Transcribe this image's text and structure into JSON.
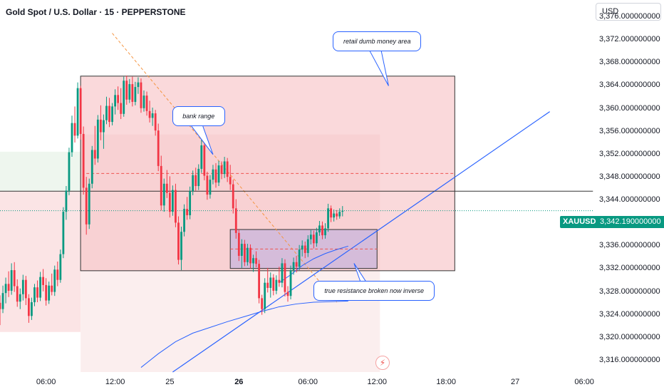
{
  "header": {
    "title": "Gold Spot / U.S. Dollar · 15 · PEPPERSTONE",
    "currency": "USD"
  },
  "chart_data": {
    "type": "candlestick",
    "symbol": "XAUUSD",
    "current_price": "3,342.190000000",
    "last_price_value": 3342.19,
    "ylim": [
      3314,
      3379
    ],
    "y_ticks": [
      {
        "value": 3376,
        "label": "3,376.000000000"
      },
      {
        "value": 3372,
        "label": "3,372.000000000"
      },
      {
        "value": 3368,
        "label": "3,368.000000000"
      },
      {
        "value": 3364,
        "label": "3,364.000000000"
      },
      {
        "value": 3360,
        "label": "3,360.000000000"
      },
      {
        "value": 3356,
        "label": "3,356.000000000"
      },
      {
        "value": 3352,
        "label": "3,352.000000000"
      },
      {
        "value": 3348,
        "label": "3,348.000000000"
      },
      {
        "value": 3344,
        "label": "3,344.000000000"
      },
      {
        "value": 3340,
        "label": "3,340.000000000"
      },
      {
        "value": 3336,
        "label": "3,336.000000000"
      },
      {
        "value": 3332,
        "label": "3,332.000000000"
      },
      {
        "value": 3328,
        "label": "3,328.000000000"
      },
      {
        "value": 3324,
        "label": "3,324.000000000"
      },
      {
        "value": 3320,
        "label": "3,320.000000000"
      },
      {
        "value": 3316,
        "label": "3,316.000000000"
      }
    ],
    "x_axis": {
      "range": [
        0,
        206
      ],
      "unit": "15-minute bars"
    },
    "x_ticks": [
      {
        "pos": 16,
        "label": "06:00",
        "bold": false
      },
      {
        "pos": 40,
        "label": "12:00",
        "bold": false
      },
      {
        "pos": 59,
        "label": "25",
        "bold": false
      },
      {
        "pos": 83,
        "label": "26",
        "bold": true
      },
      {
        "pos": 107,
        "label": "06:00",
        "bold": false
      },
      {
        "pos": 131,
        "label": "12:00",
        "bold": false
      },
      {
        "pos": 155,
        "label": "18:00",
        "bold": false
      },
      {
        "pos": 179,
        "label": "27",
        "bold": false
      },
      {
        "pos": 203,
        "label": "06:00",
        "bold": false
      }
    ],
    "candles": [
      {
        "i": 0,
        "o": 3326.1,
        "h": 3327.4,
        "l": 3322.2,
        "c": 3325.0
      },
      {
        "i": 1,
        "o": 3325.0,
        "h": 3329.1,
        "l": 3324.3,
        "c": 3327.8
      },
      {
        "i": 2,
        "o": 3327.8,
        "h": 3330.5,
        "l": 3326.0,
        "c": 3329.4
      },
      {
        "i": 3,
        "o": 3329.4,
        "h": 3331.6,
        "l": 3327.1,
        "c": 3328.2
      },
      {
        "i": 4,
        "o": 3328.2,
        "h": 3333.0,
        "l": 3327.5,
        "c": 3331.8
      },
      {
        "i": 5,
        "o": 3331.8,
        "h": 3333.2,
        "l": 3328.0,
        "c": 3329.0
      },
      {
        "i": 6,
        "o": 3329.0,
        "h": 3330.2,
        "l": 3325.4,
        "c": 3326.3
      },
      {
        "i": 7,
        "o": 3326.3,
        "h": 3328.6,
        "l": 3325.0,
        "c": 3327.6
      },
      {
        "i": 8,
        "o": 3327.6,
        "h": 3331.0,
        "l": 3326.5,
        "c": 3330.1
      },
      {
        "i": 9,
        "o": 3330.1,
        "h": 3330.8,
        "l": 3325.7,
        "c": 3326.9
      },
      {
        "i": 10,
        "o": 3326.9,
        "h": 3327.6,
        "l": 3322.6,
        "c": 3323.8
      },
      {
        "i": 11,
        "o": 3323.8,
        "h": 3327.0,
        "l": 3323.1,
        "c": 3326.2
      },
      {
        "i": 12,
        "o": 3326.2,
        "h": 3329.4,
        "l": 3325.5,
        "c": 3328.8
      },
      {
        "i": 13,
        "o": 3328.8,
        "h": 3330.0,
        "l": 3326.2,
        "c": 3327.0
      },
      {
        "i": 14,
        "o": 3327.0,
        "h": 3331.5,
        "l": 3326.4,
        "c": 3330.6
      },
      {
        "i": 15,
        "o": 3330.6,
        "h": 3332.0,
        "l": 3328.1,
        "c": 3329.2
      },
      {
        "i": 16,
        "o": 3329.2,
        "h": 3330.4,
        "l": 3325.6,
        "c": 3326.5
      },
      {
        "i": 17,
        "o": 3326.5,
        "h": 3329.8,
        "l": 3325.9,
        "c": 3329.1
      },
      {
        "i": 18,
        "o": 3329.1,
        "h": 3331.2,
        "l": 3327.4,
        "c": 3328.0
      },
      {
        "i": 19,
        "o": 3328.0,
        "h": 3332.6,
        "l": 3327.3,
        "c": 3331.9
      },
      {
        "i": 20,
        "o": 3331.9,
        "h": 3333.3,
        "l": 3329.0,
        "c": 3330.1
      },
      {
        "i": 21,
        "o": 3330.1,
        "h": 3335.4,
        "l": 3329.6,
        "c": 3334.6
      },
      {
        "i": 22,
        "o": 3334.6,
        "h": 3342.8,
        "l": 3333.9,
        "c": 3342.0
      },
      {
        "i": 23,
        "o": 3342.0,
        "h": 3346.5,
        "l": 3340.6,
        "c": 3345.7
      },
      {
        "i": 24,
        "o": 3345.7,
        "h": 3353.2,
        "l": 3344.9,
        "c": 3352.4
      },
      {
        "i": 25,
        "o": 3352.4,
        "h": 3358.8,
        "l": 3351.6,
        "c": 3357.5
      },
      {
        "i": 26,
        "o": 3357.5,
        "h": 3360.4,
        "l": 3354.1,
        "c": 3355.3
      },
      {
        "i": 27,
        "o": 3355.3,
        "h": 3364.6,
        "l": 3354.8,
        "c": 3363.6
      },
      {
        "i": 28,
        "o": 3363.6,
        "h": 3364.0,
        "l": 3354.6,
        "c": 3355.6
      },
      {
        "i": 29,
        "o": 3355.6,
        "h": 3356.9,
        "l": 3345.0,
        "c": 3346.2
      },
      {
        "i": 30,
        "o": 3346.2,
        "h": 3348.1,
        "l": 3338.0,
        "c": 3339.8
      },
      {
        "i": 31,
        "o": 3339.8,
        "h": 3347.8,
        "l": 3339.0,
        "c": 3346.9
      },
      {
        "i": 32,
        "o": 3346.9,
        "h": 3353.5,
        "l": 3346.1,
        "c": 3352.8
      },
      {
        "i": 33,
        "o": 3352.8,
        "h": 3357.0,
        "l": 3350.2,
        "c": 3351.3
      },
      {
        "i": 34,
        "o": 3351.3,
        "h": 3358.9,
        "l": 3350.6,
        "c": 3358.1
      },
      {
        "i": 35,
        "o": 3358.1,
        "h": 3360.6,
        "l": 3354.5,
        "c": 3355.9
      },
      {
        "i": 36,
        "o": 3355.9,
        "h": 3359.0,
        "l": 3353.0,
        "c": 3358.0
      },
      {
        "i": 37,
        "o": 3358.0,
        "h": 3362.1,
        "l": 3357.3,
        "c": 3360.5
      },
      {
        "i": 38,
        "o": 3360.5,
        "h": 3361.9,
        "l": 3356.8,
        "c": 3357.7
      },
      {
        "i": 39,
        "o": 3357.7,
        "h": 3361.0,
        "l": 3357.1,
        "c": 3360.4
      },
      {
        "i": 40,
        "o": 3360.4,
        "h": 3363.4,
        "l": 3359.0,
        "c": 3362.4
      },
      {
        "i": 41,
        "o": 3362.4,
        "h": 3363.9,
        "l": 3359.8,
        "c": 3361.0
      },
      {
        "i": 42,
        "o": 3361.0,
        "h": 3363.6,
        "l": 3358.2,
        "c": 3359.1
      },
      {
        "i": 43,
        "o": 3359.1,
        "h": 3365.6,
        "l": 3358.6,
        "c": 3364.9
      },
      {
        "i": 44,
        "o": 3364.9,
        "h": 3365.8,
        "l": 3360.7,
        "c": 3361.6
      },
      {
        "i": 45,
        "o": 3361.6,
        "h": 3365.2,
        "l": 3361.0,
        "c": 3364.3
      },
      {
        "i": 46,
        "o": 3364.3,
        "h": 3365.6,
        "l": 3360.4,
        "c": 3361.2
      },
      {
        "i": 47,
        "o": 3361.2,
        "h": 3364.7,
        "l": 3360.6,
        "c": 3363.8
      },
      {
        "i": 48,
        "o": 3363.8,
        "h": 3365.5,
        "l": 3362.6,
        "c": 3364.6
      },
      {
        "i": 49,
        "o": 3364.6,
        "h": 3365.3,
        "l": 3359.3,
        "c": 3360.1
      },
      {
        "i": 50,
        "o": 3360.1,
        "h": 3363.2,
        "l": 3359.5,
        "c": 3362.3
      },
      {
        "i": 51,
        "o": 3362.3,
        "h": 3363.0,
        "l": 3358.8,
        "c": 3359.6
      },
      {
        "i": 52,
        "o": 3359.6,
        "h": 3361.4,
        "l": 3357.6,
        "c": 3358.4
      },
      {
        "i": 53,
        "o": 3358.4,
        "h": 3360.2,
        "l": 3357.0,
        "c": 3359.2
      },
      {
        "i": 54,
        "o": 3359.2,
        "h": 3359.8,
        "l": 3355.3,
        "c": 3356.2
      },
      {
        "i": 55,
        "o": 3356.2,
        "h": 3357.4,
        "l": 3349.1,
        "c": 3350.0
      },
      {
        "i": 56,
        "o": 3350.0,
        "h": 3351.8,
        "l": 3342.2,
        "c": 3343.1
      },
      {
        "i": 57,
        "o": 3343.1,
        "h": 3347.8,
        "l": 3342.0,
        "c": 3346.9
      },
      {
        "i": 58,
        "o": 3346.9,
        "h": 3349.3,
        "l": 3344.4,
        "c": 3345.3
      },
      {
        "i": 59,
        "o": 3345.3,
        "h": 3348.2,
        "l": 3341.0,
        "c": 3342.0
      },
      {
        "i": 60,
        "o": 3342.0,
        "h": 3346.6,
        "l": 3341.3,
        "c": 3345.8
      },
      {
        "i": 61,
        "o": 3345.8,
        "h": 3346.9,
        "l": 3339.3,
        "c": 3340.1
      },
      {
        "i": 62,
        "o": 3340.1,
        "h": 3341.2,
        "l": 3332.8,
        "c": 3333.6
      },
      {
        "i": 63,
        "o": 3333.6,
        "h": 3339.4,
        "l": 3331.8,
        "c": 3338.5
      },
      {
        "i": 64,
        "o": 3338.5,
        "h": 3343.3,
        "l": 3337.7,
        "c": 3342.5
      },
      {
        "i": 65,
        "o": 3342.5,
        "h": 3344.6,
        "l": 3340.6,
        "c": 3341.4
      },
      {
        "i": 66,
        "o": 3341.4,
        "h": 3346.4,
        "l": 3340.7,
        "c": 3345.6
      },
      {
        "i": 67,
        "o": 3345.6,
        "h": 3349.2,
        "l": 3344.9,
        "c": 3348.4
      },
      {
        "i": 68,
        "o": 3348.4,
        "h": 3349.7,
        "l": 3345.7,
        "c": 3346.5
      },
      {
        "i": 69,
        "o": 3346.5,
        "h": 3350.3,
        "l": 3345.8,
        "c": 3349.5
      },
      {
        "i": 70,
        "o": 3349.5,
        "h": 3355.0,
        "l": 3348.8,
        "c": 3353.6
      },
      {
        "i": 71,
        "o": 3353.6,
        "h": 3354.2,
        "l": 3347.5,
        "c": 3348.3
      },
      {
        "i": 72,
        "o": 3348.3,
        "h": 3349.0,
        "l": 3344.1,
        "c": 3345.0
      },
      {
        "i": 73,
        "o": 3345.0,
        "h": 3348.4,
        "l": 3344.3,
        "c": 3347.6
      },
      {
        "i": 74,
        "o": 3347.6,
        "h": 3350.2,
        "l": 3346.8,
        "c": 3349.4
      },
      {
        "i": 75,
        "o": 3349.4,
        "h": 3350.5,
        "l": 3346.2,
        "c": 3347.1
      },
      {
        "i": 76,
        "o": 3347.1,
        "h": 3350.9,
        "l": 3346.5,
        "c": 3350.1
      },
      {
        "i": 77,
        "o": 3350.1,
        "h": 3350.8,
        "l": 3347.7,
        "c": 3348.6
      },
      {
        "i": 78,
        "o": 3348.6,
        "h": 3351.6,
        "l": 3347.9,
        "c": 3350.8
      },
      {
        "i": 79,
        "o": 3350.8,
        "h": 3351.4,
        "l": 3347.2,
        "c": 3348.1
      },
      {
        "i": 80,
        "o": 3348.1,
        "h": 3350.2,
        "l": 3345.8,
        "c": 3346.8
      },
      {
        "i": 81,
        "o": 3346.8,
        "h": 3347.6,
        "l": 3341.7,
        "c": 3342.6
      },
      {
        "i": 82,
        "o": 3342.6,
        "h": 3344.2,
        "l": 3337.3,
        "c": 3338.3
      },
      {
        "i": 83,
        "o": 3338.3,
        "h": 3338.9,
        "l": 3333.4,
        "c": 3334.3
      },
      {
        "i": 84,
        "o": 3334.3,
        "h": 3337.2,
        "l": 3332.2,
        "c": 3336.4
      },
      {
        "i": 85,
        "o": 3336.4,
        "h": 3337.1,
        "l": 3332.5,
        "c": 3333.2
      },
      {
        "i": 86,
        "o": 3333.2,
        "h": 3336.4,
        "l": 3332.6,
        "c": 3335.7
      },
      {
        "i": 87,
        "o": 3335.7,
        "h": 3336.3,
        "l": 3332.1,
        "c": 3333.0
      },
      {
        "i": 88,
        "o": 3333.0,
        "h": 3334.5,
        "l": 3331.5,
        "c": 3333.9
      },
      {
        "i": 89,
        "o": 3333.9,
        "h": 3335.1,
        "l": 3332.3,
        "c": 3332.9
      },
      {
        "i": 90,
        "o": 3332.9,
        "h": 3333.6,
        "l": 3326.0,
        "c": 3326.9
      },
      {
        "i": 91,
        "o": 3326.9,
        "h": 3327.5,
        "l": 3324.0,
        "c": 3325.0
      },
      {
        "i": 92,
        "o": 3325.0,
        "h": 3330.4,
        "l": 3324.3,
        "c": 3329.6
      },
      {
        "i": 93,
        "o": 3329.6,
        "h": 3332.2,
        "l": 3327.9,
        "c": 3328.7
      },
      {
        "i": 94,
        "o": 3328.7,
        "h": 3331.4,
        "l": 3327.0,
        "c": 3330.5
      },
      {
        "i": 95,
        "o": 3330.5,
        "h": 3331.1,
        "l": 3327.4,
        "c": 3328.2
      },
      {
        "i": 96,
        "o": 3328.2,
        "h": 3330.9,
        "l": 3327.6,
        "c": 3330.1
      },
      {
        "i": 97,
        "o": 3330.1,
        "h": 3332.4,
        "l": 3328.9,
        "c": 3329.6
      },
      {
        "i": 98,
        "o": 3329.6,
        "h": 3333.9,
        "l": 3328.8,
        "c": 3333.0
      },
      {
        "i": 99,
        "o": 3333.0,
        "h": 3333.7,
        "l": 3327.2,
        "c": 3328.0
      },
      {
        "i": 100,
        "o": 3328.0,
        "h": 3329.0,
        "l": 3326.3,
        "c": 3327.3
      },
      {
        "i": 101,
        "o": 3327.3,
        "h": 3332.6,
        "l": 3326.7,
        "c": 3331.8
      },
      {
        "i": 102,
        "o": 3331.8,
        "h": 3334.0,
        "l": 3331.0,
        "c": 3333.2
      },
      {
        "i": 103,
        "o": 3333.2,
        "h": 3334.3,
        "l": 3331.4,
        "c": 3332.4
      },
      {
        "i": 104,
        "o": 3332.4,
        "h": 3336.2,
        "l": 3331.8,
        "c": 3335.4
      },
      {
        "i": 105,
        "o": 3335.4,
        "h": 3337.0,
        "l": 3334.2,
        "c": 3336.1
      },
      {
        "i": 106,
        "o": 3336.1,
        "h": 3336.8,
        "l": 3333.9,
        "c": 3334.8
      },
      {
        "i": 107,
        "o": 3334.8,
        "h": 3337.9,
        "l": 3334.1,
        "c": 3337.2
      },
      {
        "i": 108,
        "o": 3337.2,
        "h": 3338.8,
        "l": 3336.3,
        "c": 3338.0
      },
      {
        "i": 109,
        "o": 3338.0,
        "h": 3338.7,
        "l": 3335.6,
        "c": 3336.5
      },
      {
        "i": 110,
        "o": 3336.5,
        "h": 3339.2,
        "l": 3335.9,
        "c": 3338.4
      },
      {
        "i": 111,
        "o": 3338.4,
        "h": 3340.4,
        "l": 3337.8,
        "c": 3339.6
      },
      {
        "i": 112,
        "o": 3339.6,
        "h": 3340.3,
        "l": 3337.2,
        "c": 3337.9
      },
      {
        "i": 113,
        "o": 3337.9,
        "h": 3340.0,
        "l": 3337.3,
        "c": 3339.1
      },
      {
        "i": 114,
        "o": 3339.1,
        "h": 3343.4,
        "l": 3338.5,
        "c": 3342.6
      },
      {
        "i": 115,
        "o": 3342.6,
        "h": 3343.1,
        "l": 3340.2,
        "c": 3341.0
      },
      {
        "i": 116,
        "o": 3341.0,
        "h": 3342.4,
        "l": 3340.3,
        "c": 3341.7
      },
      {
        "i": 117,
        "o": 3341.7,
        "h": 3342.3,
        "l": 3340.6,
        "c": 3341.2
      },
      {
        "i": 118,
        "o": 3341.2,
        "h": 3342.6,
        "l": 3340.8,
        "c": 3342.0
      },
      {
        "i": 119,
        "o": 3342.0,
        "h": 3343.0,
        "l": 3341.2,
        "c": 3342.19
      }
    ],
    "moving_averages": [
      {
        "color": "#2962ff",
        "points": [
          [
            49,
            3314.8
          ],
          [
            55,
            3317.2
          ],
          [
            61,
            3319.3
          ],
          [
            67,
            3320.8
          ],
          [
            73,
            3321.8
          ],
          [
            79,
            3322.8
          ],
          [
            85,
            3323.7
          ],
          [
            91,
            3324.6
          ],
          [
            97,
            3325.4
          ],
          [
            103,
            3325.9
          ],
          [
            109,
            3326.2
          ],
          [
            115,
            3326.3
          ],
          [
            121,
            3326.4
          ]
        ]
      },
      {
        "color": "#2962ff",
        "points": [
          [
            97,
            3329.6
          ],
          [
            101,
            3331.0
          ],
          [
            105,
            3332.6
          ],
          [
            109,
            3333.8
          ],
          [
            113,
            3334.7
          ],
          [
            117,
            3335.4
          ],
          [
            121,
            3336.0
          ]
        ]
      }
    ],
    "zones": [
      {
        "name": "retail-zone",
        "x0": 28,
        "x1": 158,
        "y0": 3331.7,
        "y1": 3365.7,
        "fill": "#f6b9bd",
        "stroke": "#333333"
      },
      {
        "name": "inverse-zone",
        "x0": 80,
        "x1": 131,
        "y0": 3332.1,
        "y1": 3338.9,
        "fill": "#c9b4dc",
        "stroke": "#333333"
      }
    ],
    "lines": [
      {
        "name": "orange-trend",
        "x0": 39,
        "y0": 3373.2,
        "x1": 117,
        "y1": 3326.2,
        "color": "#f59542",
        "dash": "4,3"
      },
      {
        "name": "blue-trend",
        "x0": 60,
        "y0": 3314.0,
        "x1": 191,
        "y1": 3359.5,
        "color": "#2962ff",
        "dash": ""
      },
      {
        "name": "red-dash-upper",
        "x0": 30,
        "y0": 3348.7,
        "x1": 158,
        "y1": 3348.7,
        "color": "#ef5350",
        "dash": "4,3"
      },
      {
        "name": "red-dash-lower",
        "x0": 80,
        "y0": 3335.5,
        "x1": 131,
        "y1": 3335.5,
        "color": "#ef5350",
        "dash": "4,3"
      },
      {
        "name": "horizontal-level",
        "x0": 0,
        "y0": 3345.6,
        "x1": 206,
        "y1": 3345.6,
        "color": "#333333",
        "dash": ""
      }
    ],
    "annotations": [
      {
        "text": "retail dumb money area",
        "x": 131,
        "y": 3371.8,
        "tx": 135,
        "ty": 3364
      },
      {
        "text": "bank range",
        "x": 69,
        "y": 3358.7,
        "tx": 74,
        "ty": 3352
      },
      {
        "text": "true resistance broken now inverse",
        "x": 130,
        "y": 3328.2,
        "tx": 123,
        "ty": 3333
      }
    ]
  }
}
